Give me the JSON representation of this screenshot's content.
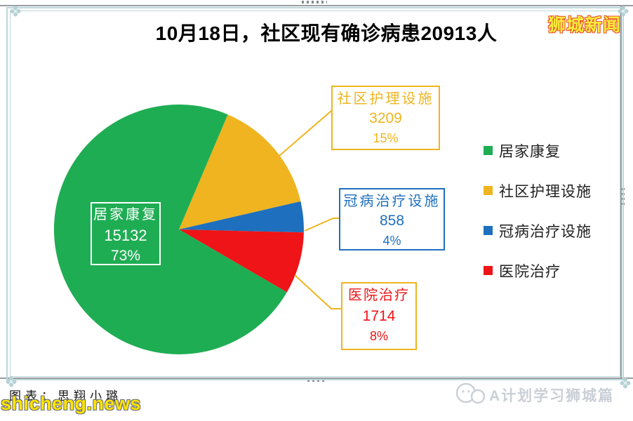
{
  "header": {
    "title": "10月18日，社区现有确诊病患20913人",
    "brand": "狮城新闻",
    "brand_color": "#f9ec3c",
    "brand_outline_color": "#e94e33"
  },
  "chart_data": {
    "type": "pie",
    "title": "10月18日，社区现有确诊病患20913人",
    "total": 20913,
    "slices": [
      {
        "key": "home-recovery",
        "label": "居家康复",
        "value": "15132",
        "pct": 73,
        "pct_label": "73%",
        "color": "#1fad54"
      },
      {
        "key": "community-care",
        "label": "社区护理设施",
        "value": "3209",
        "pct": 15,
        "pct_label": "15%",
        "color": "#efb41f"
      },
      {
        "key": "covid-facility",
        "label": "冠病治疗设施",
        "value": "858",
        "pct": 4,
        "pct_label": "4%",
        "color": "#1e6fbe"
      },
      {
        "key": "hospital",
        "label": "医院治疗",
        "value": "1714",
        "pct": 8,
        "pct_label": "8%",
        "color": "#ee1417"
      }
    ],
    "start_angle_deg": 23,
    "draw_order": [
      1,
      2,
      3,
      0
    ],
    "leader_line_color": "#efb41f",
    "legend_position": "right",
    "legend_entries": [
      "居家康复",
      "社区护理设施",
      "冠病治疗设施",
      "医院治疗"
    ]
  },
  "footer": {
    "credit": "图表：思翔小璐",
    "watermark": "shicheng.news",
    "channel": "A计划学习狮城篇"
  }
}
